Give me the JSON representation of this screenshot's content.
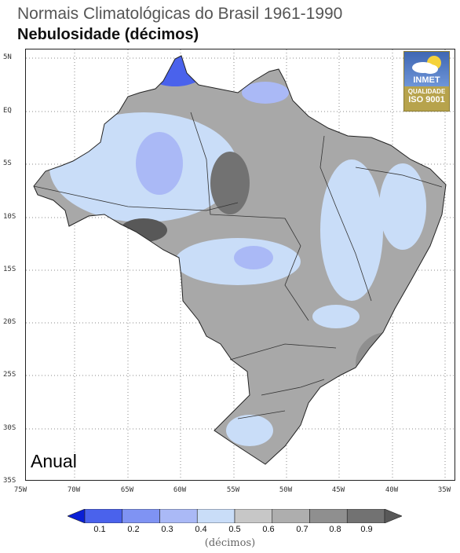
{
  "title": "Normais Climatológicas do Brasil 1961-1990",
  "subtitle": "Nebulosidade (décimos)",
  "season": "Anual",
  "logo": {
    "name": "INMET",
    "quality": "QUALIDADE",
    "iso": "ISO 9001"
  },
  "lat_labels": [
    "5N",
    "EQ",
    "5S",
    "10S",
    "15S",
    "20S",
    "25S",
    "30S",
    "35S"
  ],
  "lon_labels": [
    "75W",
    "70W",
    "65W",
    "60W",
    "55W",
    "50W",
    "45W",
    "40W",
    "35W"
  ],
  "colorbar": {
    "ticks": [
      "0.1",
      "0.2",
      "0.3",
      "0.4",
      "0.5",
      "0.6",
      "0.7",
      "0.8",
      "0.9"
    ],
    "unit": "(décimos)",
    "colors": [
      "#0a1fd6",
      "#4a62ec",
      "#7f93f3",
      "#aab9f6",
      "#c9ddf8",
      "#c7c7c7",
      "#aeaeae",
      "#8f8f8f",
      "#727272",
      "#585858"
    ]
  }
}
